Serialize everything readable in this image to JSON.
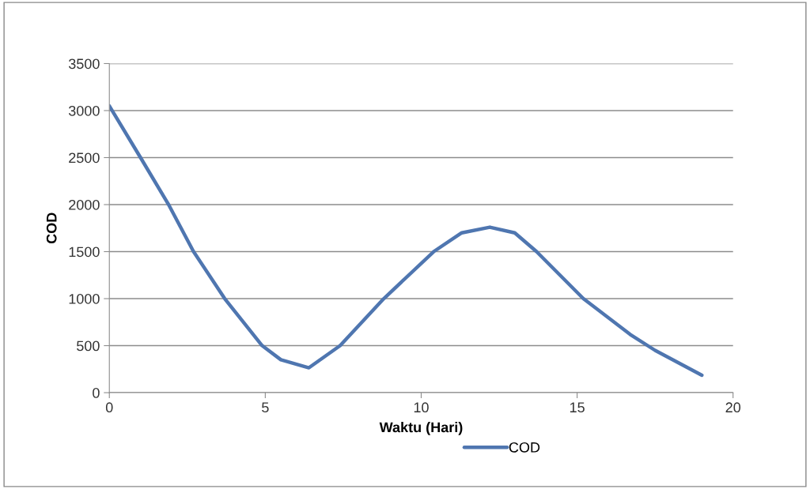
{
  "chart_data": {
    "type": "line",
    "xlabel": "Waktu (Hari)",
    "ylabel": "COD",
    "series": [
      {
        "name": "COD",
        "color": "#4f76b0",
        "x": [
          0,
          1,
          1.9,
          2.7,
          3.7,
          4.9,
          5.5,
          6.4,
          7.4,
          8.8,
          10.4,
          11.3,
          12.2,
          13,
          13.7,
          15.2,
          16.7,
          17.5,
          19
        ],
        "values": [
          3050,
          2500,
          2000,
          1500,
          1000,
          500,
          350,
          265,
          500,
          1000,
          1500,
          1700,
          1760,
          1700,
          1500,
          1000,
          620,
          450,
          185
        ]
      }
    ],
    "xlim": [
      0,
      20
    ],
    "xticks": [
      0,
      5,
      10,
      15,
      20
    ],
    "ylim": [
      0,
      3500
    ],
    "yticks": [
      0,
      500,
      1000,
      1500,
      2000,
      2500,
      3000,
      3500
    ],
    "grid": "y",
    "legend": "bottom",
    "marker": "none",
    "line_style": "solid"
  }
}
